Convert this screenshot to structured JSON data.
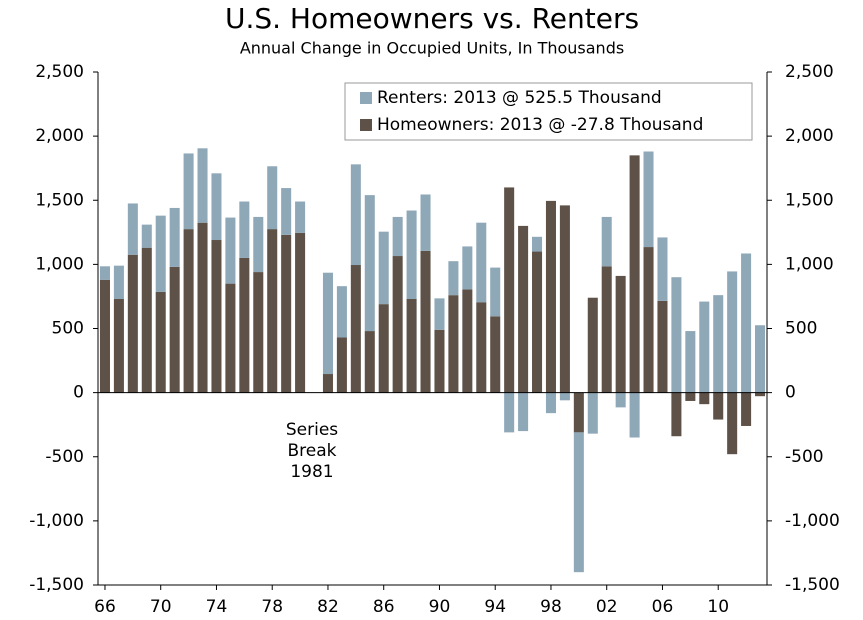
{
  "chart_data": {
    "type": "stacked_bar",
    "title": "U.S. Homeowners vs. Renters",
    "subtitle": "Annual Change in Occupied Units, In Thousands",
    "annotation": [
      "Series",
      "Break",
      "1981"
    ],
    "categories": [
      "66",
      null,
      null,
      null,
      "70",
      null,
      null,
      null,
      "74",
      null,
      null,
      null,
      "78",
      null,
      null,
      null,
      "82",
      null,
      null,
      null,
      "86",
      null,
      null,
      null,
      "90",
      null,
      null,
      null,
      "94",
      null,
      null,
      null,
      "98",
      null,
      null,
      null,
      "02",
      null,
      null,
      null,
      "06",
      null,
      null,
      null,
      "10",
      null,
      null,
      null
    ],
    "series": [
      {
        "name": "Renters: 2013 @ 525.5 Thousand",
        "color": "#8fa8b8",
        "values": [
          105,
          260,
          400,
          180,
          595,
          460,
          590,
          580,
          520,
          515,
          440,
          430,
          490,
          365,
          245,
          null,
          790,
          400,
          785,
          1060,
          565,
          305,
          690,
          440,
          245,
          265,
          335,
          620,
          380,
          -310,
          -300,
          115,
          -160,
          -60,
          -1090,
          -320,
          385,
          -115,
          -350,
          745,
          495,
          900,
          480,
          710,
          760,
          945,
          1085,
          525.5
        ]
      },
      {
        "name": "Homeowners: 2013 @ -27.8 Thousand",
        "color": "#5e5248",
        "values": [
          880,
          730,
          1075,
          1130,
          785,
          980,
          1275,
          1325,
          1190,
          850,
          1050,
          940,
          1275,
          1230,
          1245,
          null,
          145,
          430,
          995,
          480,
          690,
          1065,
          730,
          1105,
          490,
          760,
          805,
          705,
          595,
          1600,
          1300,
          1100,
          1495,
          1460,
          -310,
          740,
          985,
          910,
          1850,
          1135,
          715,
          -340,
          -65,
          -90,
          -210,
          -480,
          -260,
          -27.8
        ]
      }
    ],
    "ylim": [
      -1500,
      2500
    ],
    "yticks": [
      {
        "value": -1500,
        "label": "-1,500"
      },
      {
        "value": -1000,
        "label": "-1,000"
      },
      -500,
      0,
      500,
      {
        "value": 1000,
        "label": "1,000"
      },
      {
        "value": 1500,
        "label": "1,500"
      },
      {
        "value": 2000,
        "label": "2,000"
      },
      {
        "value": 2500,
        "label": "2,500"
      }
    ],
    "y2lim": [
      -1500,
      2500
    ],
    "y2ticks": [
      {
        "value": -1500,
        "label": "-1,500"
      },
      {
        "value": -1000,
        "label": "-1,000"
      },
      -500,
      0,
      500,
      {
        "value": 1000,
        "label": "1,000"
      },
      {
        "value": 1500,
        "label": "1,500"
      },
      {
        "value": 2000,
        "label": "2,000"
      },
      {
        "value": 2500,
        "label": "2,500"
      }
    ],
    "legend": "top-right"
  }
}
